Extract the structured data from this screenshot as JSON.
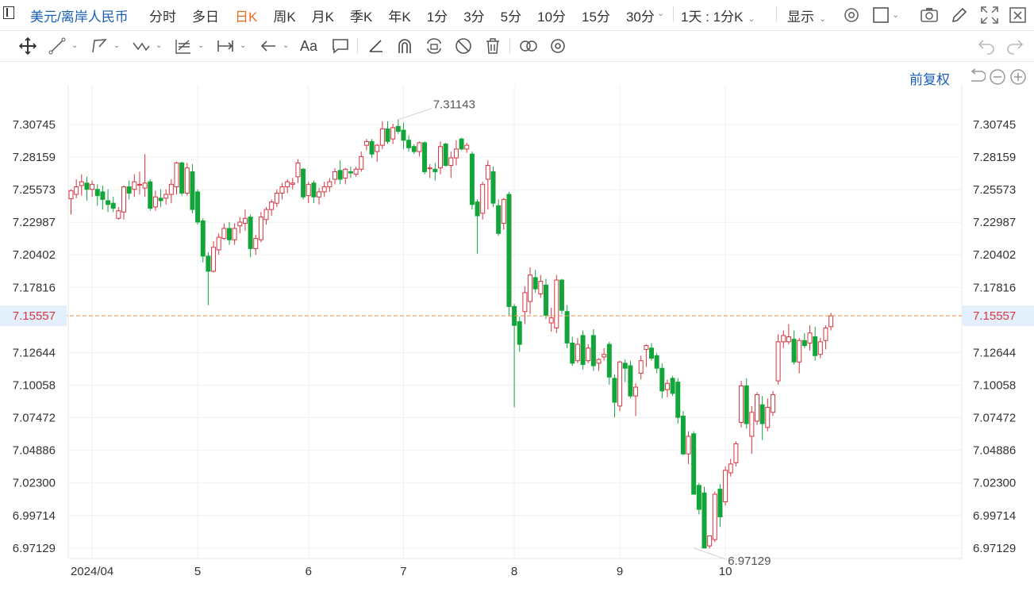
{
  "header": {
    "symbol": "美元/离岸人民币",
    "periods": [
      "分时",
      "多日",
      "日K",
      "周K",
      "月K",
      "季K",
      "年K",
      "1分",
      "3分",
      "5分",
      "10分",
      "15分",
      "30分"
    ],
    "active_period": "日K",
    "range_select": "1天 : 1分K",
    "display_select": "显示"
  },
  "icons": [
    "panel-icon",
    "gear-icon",
    "square-icon",
    "camera-icon",
    "pencil-icon",
    "fullscreen-icon",
    "crosshair-icon",
    "line-icon",
    "polyline-icon",
    "wave-icon",
    "fib-icon",
    "measure-icon",
    "arrow-icon",
    "text-icon",
    "comment-icon",
    "ruler-icon",
    "magnet-icon",
    "lock-icon",
    "hide-icon",
    "trash-icon",
    "compare-icon",
    "settings-icon",
    "undo-icon",
    "redo-icon",
    "reset-icon",
    "zoom-out-icon",
    "zoom-in-icon"
  ],
  "toolbar": {
    "text_tool": "Aa"
  },
  "chart_controls": {
    "adjust_label": "前复权"
  },
  "colors": {
    "up": "#d9343f",
    "down": "#12a53a",
    "price_line": "#f28a44",
    "link": "#1a5fb4",
    "active": "#f26c22"
  },
  "chart_data": {
    "type": "candlestick",
    "y_ticks": [
      "7.30745",
      "7.28159",
      "7.25573",
      "7.22987",
      "7.20402",
      "7.17816",
      "7.15557",
      "7.12644",
      "7.10058",
      "7.07472",
      "7.04886",
      "7.02300",
      "6.99714",
      "6.97129"
    ],
    "ylim": [
      6.963,
      7.3383
    ],
    "x_tick_labels": [
      {
        "label": "2024/04",
        "index": 4
      },
      {
        "label": "5",
        "index": 24
      },
      {
        "label": "6",
        "index": 45
      },
      {
        "label": "7",
        "index": 63
      },
      {
        "label": "8",
        "index": 84
      },
      {
        "label": "9",
        "index": 104
      },
      {
        "label": "10",
        "index": 124
      }
    ],
    "current_price": 7.15557,
    "high_annotation": {
      "label": "7.31143",
      "value": 7.31143,
      "index": 62
    },
    "low_annotation": {
      "label": "6.97129",
      "value": 6.97129,
      "index": 118
    },
    "candles": [
      {
        "o": 7.2485,
        "h": 7.256,
        "l": 7.236,
        "c": 7.255
      },
      {
        "o": 7.252,
        "h": 7.264,
        "l": 7.249,
        "c": 7.258
      },
      {
        "o": 7.259,
        "h": 7.268,
        "l": 7.251,
        "c": 7.262
      },
      {
        "o": 7.261,
        "h": 7.266,
        "l": 7.247,
        "c": 7.256
      },
      {
        "o": 7.256,
        "h": 7.263,
        "l": 7.25,
        "c": 7.26
      },
      {
        "o": 7.256,
        "h": 7.26,
        "l": 7.243,
        "c": 7.251
      },
      {
        "o": 7.254,
        "h": 7.259,
        "l": 7.24,
        "c": 7.248
      },
      {
        "o": 7.247,
        "h": 7.256,
        "l": 7.238,
        "c": 7.244
      },
      {
        "o": 7.245,
        "h": 7.25,
        "l": 7.238,
        "c": 7.241
      },
      {
        "o": 7.233,
        "h": 7.242,
        "l": 7.232,
        "c": 7.239
      },
      {
        "o": 7.238,
        "h": 7.259,
        "l": 7.232,
        "c": 7.258
      },
      {
        "o": 7.258,
        "h": 7.263,
        "l": 7.248,
        "c": 7.253
      },
      {
        "o": 7.256,
        "h": 7.268,
        "l": 7.25,
        "c": 7.262
      },
      {
        "o": 7.26,
        "h": 7.27,
        "l": 7.252,
        "c": 7.26
      },
      {
        "o": 7.257,
        "h": 7.284,
        "l": 7.25,
        "c": 7.261
      },
      {
        "o": 7.262,
        "h": 7.264,
        "l": 7.239,
        "c": 7.241
      },
      {
        "o": 7.242,
        "h": 7.255,
        "l": 7.239,
        "c": 7.25
      },
      {
        "o": 7.249,
        "h": 7.256,
        "l": 7.242,
        "c": 7.247
      },
      {
        "o": 7.249,
        "h": 7.256,
        "l": 7.244,
        "c": 7.252
      },
      {
        "o": 7.252,
        "h": 7.264,
        "l": 7.245,
        "c": 7.26
      },
      {
        "o": 7.258,
        "h": 7.278,
        "l": 7.252,
        "c": 7.277
      },
      {
        "o": 7.277,
        "h": 7.278,
        "l": 7.251,
        "c": 7.253
      },
      {
        "o": 7.253,
        "h": 7.277,
        "l": 7.251,
        "c": 7.273
      },
      {
        "o": 7.27,
        "h": 7.276,
        "l": 7.237,
        "c": 7.24
      },
      {
        "o": 7.254,
        "h": 7.256,
        "l": 7.228,
        "c": 7.23
      },
      {
        "o": 7.231,
        "h": 7.233,
        "l": 7.198,
        "c": 7.203
      },
      {
        "o": 7.203,
        "h": 7.206,
        "l": 7.164,
        "c": 7.191
      },
      {
        "o": 7.191,
        "h": 7.215,
        "l": 7.19,
        "c": 7.21
      },
      {
        "o": 7.208,
        "h": 7.221,
        "l": 7.204,
        "c": 7.218
      },
      {
        "o": 7.217,
        "h": 7.229,
        "l": 7.216,
        "c": 7.225
      },
      {
        "o": 7.225,
        "h": 7.23,
        "l": 7.212,
        "c": 7.216
      },
      {
        "o": 7.216,
        "h": 7.229,
        "l": 7.212,
        "c": 7.225
      },
      {
        "o": 7.227,
        "h": 7.234,
        "l": 7.221,
        "c": 7.23
      },
      {
        "o": 7.229,
        "h": 7.24,
        "l": 7.223,
        "c": 7.233
      },
      {
        "o": 7.234,
        "h": 7.236,
        "l": 7.202,
        "c": 7.209
      },
      {
        "o": 7.209,
        "h": 7.22,
        "l": 7.204,
        "c": 7.217
      },
      {
        "o": 7.216,
        "h": 7.238,
        "l": 7.214,
        "c": 7.234
      },
      {
        "o": 7.232,
        "h": 7.242,
        "l": 7.228,
        "c": 7.24
      },
      {
        "o": 7.24,
        "h": 7.248,
        "l": 7.235,
        "c": 7.246
      },
      {
        "o": 7.245,
        "h": 7.256,
        "l": 7.242,
        "c": 7.253
      },
      {
        "o": 7.253,
        "h": 7.261,
        "l": 7.248,
        "c": 7.258
      },
      {
        "o": 7.258,
        "h": 7.264,
        "l": 7.253,
        "c": 7.262
      },
      {
        "o": 7.26,
        "h": 7.265,
        "l": 7.256,
        "c": 7.261
      },
      {
        "o": 7.266,
        "h": 7.28,
        "l": 7.261,
        "c": 7.277
      },
      {
        "o": 7.272,
        "h": 7.273,
        "l": 7.248,
        "c": 7.25
      },
      {
        "o": 7.251,
        "h": 7.262,
        "l": 7.245,
        "c": 7.26
      },
      {
        "o": 7.261,
        "h": 7.263,
        "l": 7.245,
        "c": 7.25
      },
      {
        "o": 7.25,
        "h": 7.257,
        "l": 7.244,
        "c": 7.254
      },
      {
        "o": 7.254,
        "h": 7.262,
        "l": 7.25,
        "c": 7.258
      },
      {
        "o": 7.258,
        "h": 7.265,
        "l": 7.254,
        "c": 7.262
      },
      {
        "o": 7.264,
        "h": 7.273,
        "l": 7.26,
        "c": 7.27
      },
      {
        "o": 7.271,
        "h": 7.279,
        "l": 7.26,
        "c": 7.264
      },
      {
        "o": 7.265,
        "h": 7.273,
        "l": 7.26,
        "c": 7.272
      },
      {
        "o": 7.27,
        "h": 7.274,
        "l": 7.265,
        "c": 7.269
      },
      {
        "o": 7.268,
        "h": 7.274,
        "l": 7.266,
        "c": 7.272
      },
      {
        "o": 7.272,
        "h": 7.286,
        "l": 7.27,
        "c": 7.282
      },
      {
        "o": 7.291,
        "h": 7.296,
        "l": 7.287,
        "c": 7.294
      },
      {
        "o": 7.294,
        "h": 7.296,
        "l": 7.281,
        "c": 7.284
      },
      {
        "o": 7.286,
        "h": 7.292,
        "l": 7.278,
        "c": 7.291
      },
      {
        "o": 7.291,
        "h": 7.31,
        "l": 7.288,
        "c": 7.304
      },
      {
        "o": 7.304,
        "h": 7.31,
        "l": 7.292,
        "c": 7.294
      },
      {
        "o": 7.296,
        "h": 7.308,
        "l": 7.292,
        "c": 7.305
      },
      {
        "o": 7.306,
        "h": 7.3114,
        "l": 7.3,
        "c": 7.302
      },
      {
        "o": 7.303,
        "h": 7.309,
        "l": 7.288,
        "c": 7.295
      },
      {
        "o": 7.295,
        "h": 7.299,
        "l": 7.286,
        "c": 7.289
      },
      {
        "o": 7.29,
        "h": 7.292,
        "l": 7.284,
        "c": 7.286
      },
      {
        "o": 7.286,
        "h": 7.294,
        "l": 7.282,
        "c": 7.293
      },
      {
        "o": 7.293,
        "h": 7.294,
        "l": 7.268,
        "c": 7.27
      },
      {
        "o": 7.273,
        "h": 7.276,
        "l": 7.265,
        "c": 7.273
      },
      {
        "o": 7.272,
        "h": 7.277,
        "l": 7.263,
        "c": 7.27
      },
      {
        "o": 7.273,
        "h": 7.294,
        "l": 7.268,
        "c": 7.29
      },
      {
        "o": 7.292,
        "h": 7.293,
        "l": 7.274,
        "c": 7.275
      },
      {
        "o": 7.275,
        "h": 7.286,
        "l": 7.265,
        "c": 7.281
      },
      {
        "o": 7.281,
        "h": 7.295,
        "l": 7.275,
        "c": 7.288
      },
      {
        "o": 7.296,
        "h": 7.297,
        "l": 7.287,
        "c": 7.288
      },
      {
        "o": 7.288,
        "h": 7.293,
        "l": 7.285,
        "c": 7.291
      },
      {
        "o": 7.284,
        "h": 7.286,
        "l": 7.24,
        "c": 7.244
      },
      {
        "o": 7.246,
        "h": 7.248,
        "l": 7.205,
        "c": 7.235
      },
      {
        "o": 7.237,
        "h": 7.262,
        "l": 7.232,
        "c": 7.26
      },
      {
        "o": 7.264,
        "h": 7.279,
        "l": 7.24,
        "c": 7.275
      },
      {
        "o": 7.27,
        "h": 7.274,
        "l": 7.242,
        "c": 7.245
      },
      {
        "o": 7.243,
        "h": 7.248,
        "l": 7.219,
        "c": 7.221
      },
      {
        "o": 7.229,
        "h": 7.249,
        "l": 7.224,
        "c": 7.248
      },
      {
        "o": 7.252,
        "h": 7.254,
        "l": 7.156,
        "c": 7.163
      },
      {
        "o": 7.163,
        "h": 7.165,
        "l": 7.083,
        "c": 7.148
      },
      {
        "o": 7.151,
        "h": 7.155,
        "l": 7.127,
        "c": 7.133
      },
      {
        "o": 7.159,
        "h": 7.179,
        "l": 7.149,
        "c": 7.174
      },
      {
        "o": 7.167,
        "h": 7.194,
        "l": 7.157,
        "c": 7.188
      },
      {
        "o": 7.186,
        "h": 7.192,
        "l": 7.174,
        "c": 7.177
      },
      {
        "o": 7.173,
        "h": 7.188,
        "l": 7.17,
        "c": 7.183
      },
      {
        "o": 7.18,
        "h": 7.185,
        "l": 7.153,
        "c": 7.156
      },
      {
        "o": 7.15,
        "h": 7.162,
        "l": 7.143,
        "c": 7.154
      },
      {
        "o": 7.146,
        "h": 7.188,
        "l": 7.142,
        "c": 7.184
      },
      {
        "o": 7.184,
        "h": 7.185,
        "l": 7.157,
        "c": 7.16
      },
      {
        "o": 7.159,
        "h": 7.164,
        "l": 7.13,
        "c": 7.134
      },
      {
        "o": 7.134,
        "h": 7.139,
        "l": 7.116,
        "c": 7.118
      },
      {
        "o": 7.12,
        "h": 7.138,
        "l": 7.118,
        "c": 7.133
      },
      {
        "o": 7.14,
        "h": 7.144,
        "l": 7.113,
        "c": 7.117
      },
      {
        "o": 7.12,
        "h": 7.133,
        "l": 7.118,
        "c": 7.13
      },
      {
        "o": 7.14,
        "h": 7.145,
        "l": 7.112,
        "c": 7.116
      },
      {
        "o": 7.118,
        "h": 7.122,
        "l": 7.112,
        "c": 7.121
      },
      {
        "o": 7.123,
        "h": 7.13,
        "l": 7.12,
        "c": 7.125
      },
      {
        "o": 7.133,
        "h": 7.135,
        "l": 7.101,
        "c": 7.107
      },
      {
        "o": 7.106,
        "h": 7.109,
        "l": 7.075,
        "c": 7.087
      },
      {
        "o": 7.084,
        "h": 7.12,
        "l": 7.08,
        "c": 7.119
      },
      {
        "o": 7.118,
        "h": 7.121,
        "l": 7.103,
        "c": 7.114
      },
      {
        "o": 7.116,
        "h": 7.12,
        "l": 7.09,
        "c": 7.092
      },
      {
        "o": 7.092,
        "h": 7.102,
        "l": 7.076,
        "c": 7.099
      },
      {
        "o": 7.11,
        "h": 7.124,
        "l": 7.105,
        "c": 7.12
      },
      {
        "o": 7.129,
        "h": 7.133,
        "l": 7.115,
        "c": 7.132
      },
      {
        "o": 7.13,
        "h": 7.134,
        "l": 7.12,
        "c": 7.122
      },
      {
        "o": 7.124,
        "h": 7.126,
        "l": 7.11,
        "c": 7.114
      },
      {
        "o": 7.114,
        "h": 7.118,
        "l": 7.09,
        "c": 7.096
      },
      {
        "o": 7.097,
        "h": 7.105,
        "l": 7.091,
        "c": 7.102
      },
      {
        "o": 7.106,
        "h": 7.108,
        "l": 7.092,
        "c": 7.094
      },
      {
        "o": 7.103,
        "h": 7.106,
        "l": 7.07,
        "c": 7.075
      },
      {
        "o": 7.076,
        "h": 7.08,
        "l": 7.045,
        "c": 7.046
      },
      {
        "o": 7.046,
        "h": 7.064,
        "l": 7.038,
        "c": 7.06
      },
      {
        "o": 7.062,
        "h": 7.064,
        "l": 7.014,
        "c": 7.014
      },
      {
        "o": 7.021,
        "h": 7.023,
        "l": 6.998,
        "c": 7.002
      },
      {
        "o": 7.015,
        "h": 7.02,
        "l": 6.971,
        "c": 6.9713
      },
      {
        "o": 6.973,
        "h": 6.981,
        "l": 6.971,
        "c": 6.981
      },
      {
        "o": 6.978,
        "h": 7.016,
        "l": 6.976,
        "c": 7.014
      },
      {
        "o": 7.018,
        "h": 7.022,
        "l": 6.988,
        "c": 6.996
      },
      {
        "o": 7.008,
        "h": 7.036,
        "l": 7.005,
        "c": 7.033
      },
      {
        "o": 7.031,
        "h": 7.042,
        "l": 7.028,
        "c": 7.038
      },
      {
        "o": 7.039,
        "h": 7.056,
        "l": 7.036,
        "c": 7.054
      },
      {
        "o": 7.071,
        "h": 7.104,
        "l": 7.067,
        "c": 7.1
      },
      {
        "o": 7.1,
        "h": 7.106,
        "l": 7.066,
        "c": 7.07
      },
      {
        "o": 7.06,
        "h": 7.084,
        "l": 7.046,
        "c": 7.079
      },
      {
        "o": 7.072,
        "h": 7.095,
        "l": 7.069,
        "c": 7.093
      },
      {
        "o": 7.085,
        "h": 7.092,
        "l": 7.057,
        "c": 7.07
      },
      {
        "o": 7.067,
        "h": 7.09,
        "l": 7.064,
        "c": 7.083
      },
      {
        "o": 7.079,
        "h": 7.096,
        "l": 7.076,
        "c": 7.093
      },
      {
        "o": 7.104,
        "h": 7.141,
        "l": 7.101,
        "c": 7.135
      },
      {
        "o": 7.135,
        "h": 7.144,
        "l": 7.13,
        "c": 7.14
      },
      {
        "o": 7.135,
        "h": 7.149,
        "l": 7.133,
        "c": 7.139
      },
      {
        "o": 7.137,
        "h": 7.144,
        "l": 7.117,
        "c": 7.119
      },
      {
        "o": 7.119,
        "h": 7.138,
        "l": 7.11,
        "c": 7.136
      },
      {
        "o": 7.136,
        "h": 7.142,
        "l": 7.13,
        "c": 7.132
      },
      {
        "o": 7.134,
        "h": 7.148,
        "l": 7.128,
        "c": 7.142
      },
      {
        "o": 7.139,
        "h": 7.147,
        "l": 7.12,
        "c": 7.124
      },
      {
        "o": 7.125,
        "h": 7.138,
        "l": 7.122,
        "c": 7.135
      },
      {
        "o": 7.136,
        "h": 7.148,
        "l": 7.129,
        "c": 7.146
      },
      {
        "o": 7.147,
        "h": 7.158,
        "l": 7.144,
        "c": 7.1556
      }
    ]
  }
}
